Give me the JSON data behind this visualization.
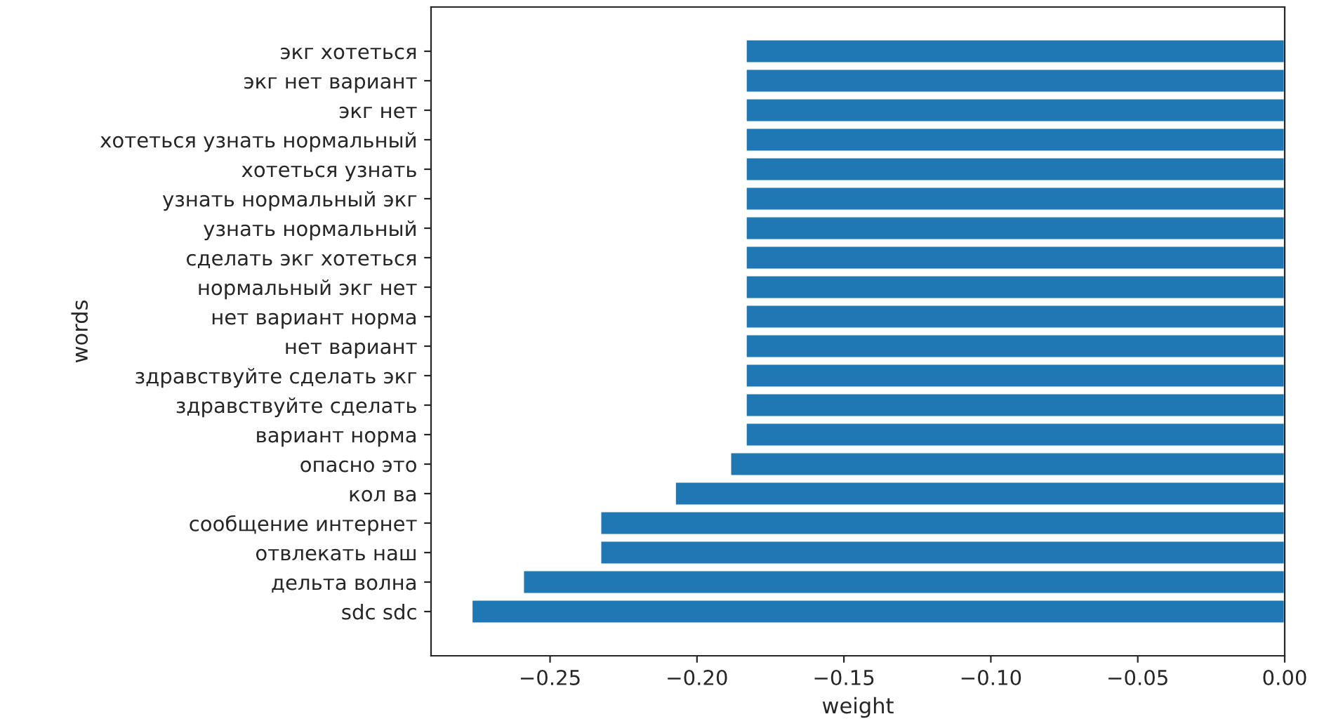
{
  "chart_data": {
    "type": "bar",
    "orientation": "horizontal",
    "xlabel": "weight",
    "ylabel": "words",
    "categories": [
      "экг хотеться",
      "экг нет вариант",
      "экг нет",
      "хотеться узнать нормальный",
      "хотеться узнать",
      "узнать нормальный экг",
      "узнать нормальный",
      "сделать экг хотеться",
      "нормальный экг нет",
      "нет вариант норма",
      "нет вариант",
      "здравствуйте сделать экг",
      "здравствуйте сделать",
      "вариант норма",
      "опасно это",
      "кол ва",
      "сообщение интернет",
      "отвлекать наш",
      "дельта волна",
      "sdc sdc"
    ],
    "values": [
      -0.1834,
      -0.1834,
      -0.1834,
      -0.1834,
      -0.1834,
      -0.1834,
      -0.1834,
      -0.1834,
      -0.1834,
      -0.1834,
      -0.1834,
      -0.1834,
      -0.1834,
      -0.1834,
      -0.1887,
      -0.2075,
      -0.2329,
      -0.2329,
      -0.2592,
      -0.2767
    ],
    "color": "#1f77b4",
    "xlim": [
      -0.2905,
      0
    ],
    "xticks": [
      {
        "value": -0.25,
        "label": "−0.25"
      },
      {
        "value": -0.2,
        "label": "−0.20"
      },
      {
        "value": -0.15,
        "label": "−0.15"
      },
      {
        "value": -0.1,
        "label": "−0.10"
      },
      {
        "value": -0.05,
        "label": "−0.05"
      },
      {
        "value": 0,
        "label": "0.00"
      }
    ],
    "grid": false,
    "legend": false
  }
}
